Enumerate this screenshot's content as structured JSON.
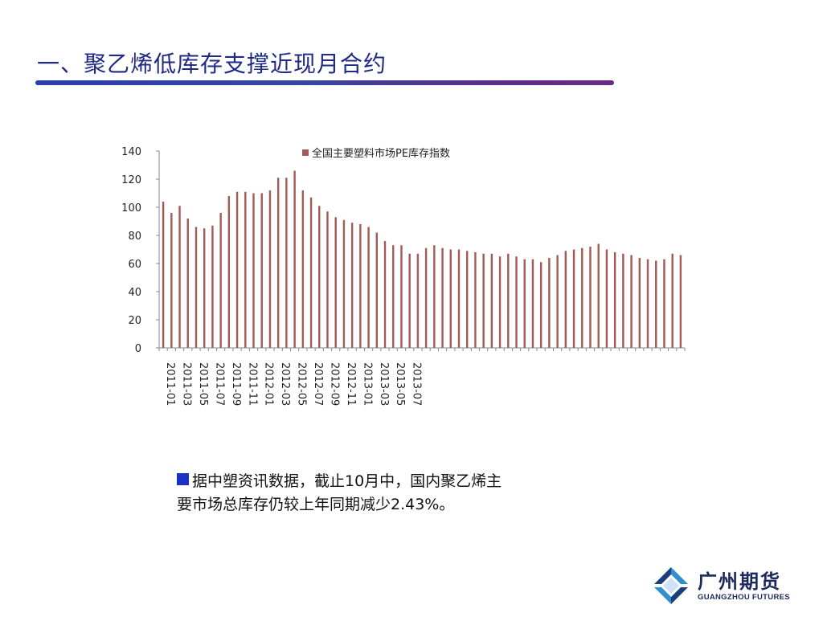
{
  "slide": {
    "title": "一、聚乙烯低库存支撑近现月合约",
    "caption_line1": "据中塑资讯数据，截止10月中，国内聚乙烯主",
    "caption_line2": "要市场总库存仍较上年同期减少2.43%。"
  },
  "logo": {
    "name_cn": "广州期货",
    "name_en": "GUANGZHOU FUTURES",
    "icon": "guangzhou-futures-logo-icon"
  },
  "colors": {
    "title": "#1f2a86",
    "bar": "#a45a55",
    "bullet": "#1a31c8"
  },
  "chart_data": {
    "type": "bar",
    "legend": "全国主要塑料市场PE库存指数",
    "legend_position": "top-center",
    "ylim": [
      0,
      140
    ],
    "yticks": [
      0,
      20,
      40,
      60,
      80,
      100,
      120,
      140
    ],
    "xtick_labels": [
      "2011-01",
      "2011-03",
      "2011-05",
      "2011-07",
      "2011-09",
      "2011-11",
      "2012-01",
      "2012-03",
      "2012-05",
      "2012-07",
      "2012-09",
      "2012-11",
      "2013-01",
      "2013-03",
      "2013-05",
      "2013-07"
    ],
    "grid": false,
    "series": [
      {
        "name": "全国主要塑料市场PE库存指数",
        "values": [
          104,
          96,
          101,
          92,
          86,
          85,
          87,
          96,
          108,
          111,
          111,
          110,
          110,
          112,
          121,
          121,
          126,
          112,
          107,
          101,
          97,
          93,
          91,
          89,
          88,
          86,
          82,
          76,
          73,
          73,
          67,
          67,
          71,
          73,
          71,
          70,
          70,
          69,
          68,
          67,
          67,
          65,
          67,
          65,
          63,
          63,
          61,
          64,
          66,
          69,
          70,
          71,
          72,
          74,
          70,
          68,
          67,
          66,
          64,
          63,
          62,
          63,
          67,
          66
        ]
      }
    ]
  }
}
